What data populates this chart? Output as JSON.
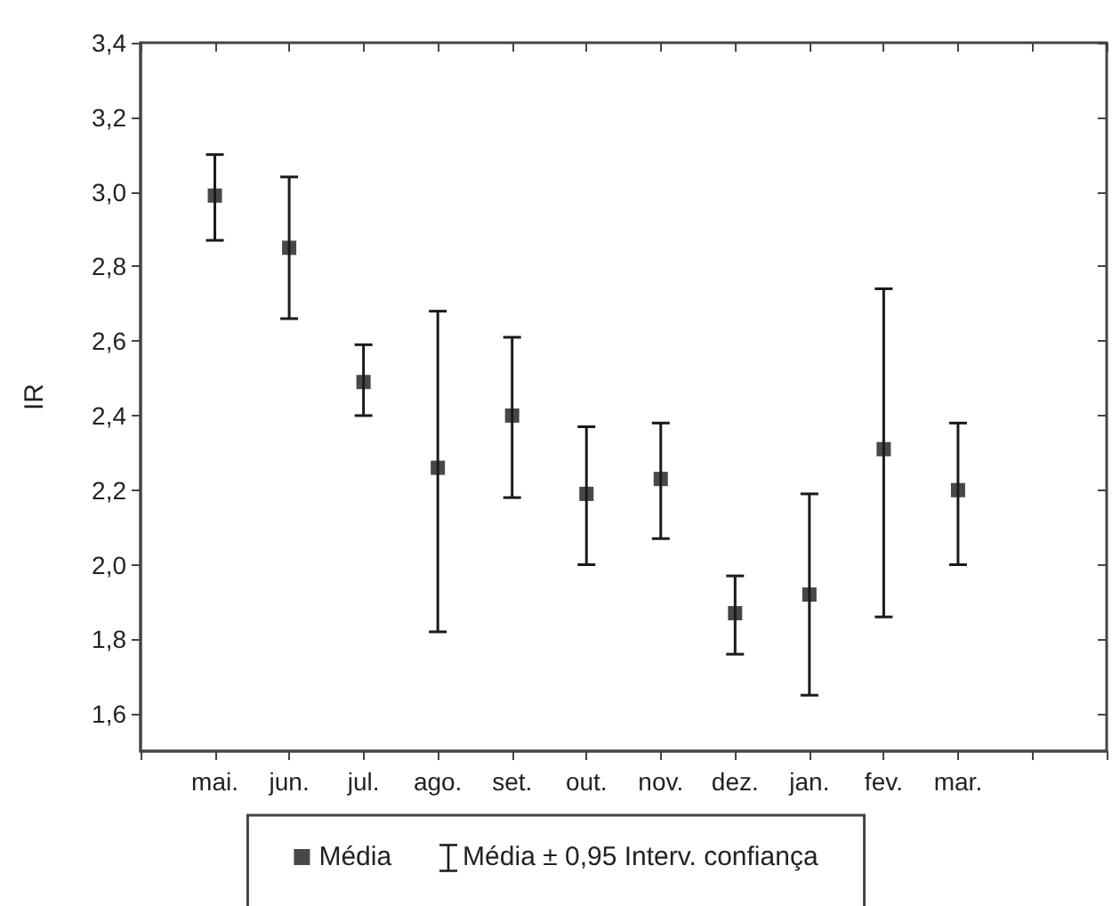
{
  "chart_data": {
    "type": "scatter",
    "ylabel": "IR",
    "categories": [
      null,
      "mai.",
      "jun.",
      "jul.",
      "ago.",
      "set.",
      "out.",
      "nov.",
      "dez.",
      "jan.",
      "fev.",
      "mar.",
      null
    ],
    "series": [
      {
        "name": "Média",
        "color": "#1a1a1a",
        "values": [
          null,
          2.99,
          2.85,
          2.49,
          2.26,
          2.4,
          2.19,
          2.23,
          1.87,
          1.92,
          2.31,
          2.2,
          null
        ],
        "errors": [
          null,
          [
            2.87,
            3.1
          ],
          [
            2.66,
            3.04
          ],
          [
            2.4,
            2.59
          ],
          [
            1.82,
            2.68
          ],
          [
            2.18,
            2.61
          ],
          [
            2.0,
            2.37
          ],
          [
            2.07,
            2.38
          ],
          [
            1.76,
            1.97
          ],
          [
            1.65,
            2.19
          ],
          [
            1.86,
            2.74
          ],
          [
            2.0,
            2.38
          ],
          null
        ]
      }
    ],
    "annotations": [
      "Média ± 0,95 Interv. confiança"
    ],
    "ylim": [
      1.5,
      3.4
    ],
    "yticks": [
      {
        "value": 1.6,
        "label": "1,6"
      },
      {
        "value": 1.8,
        "label": "1,8"
      },
      {
        "value": 2.0,
        "label": "2,0"
      },
      {
        "value": 2.2,
        "label": "2,2"
      },
      {
        "value": 2.4,
        "label": "2,4"
      },
      {
        "value": 2.6,
        "label": "2,6"
      },
      {
        "value": 2.8,
        "label": "2,8"
      },
      {
        "value": 3.0,
        "label": "3,0"
      },
      {
        "value": 3.2,
        "label": "3,2"
      },
      {
        "value": 3.4,
        "label": "3,4"
      }
    ],
    "marker": "square",
    "grid": false,
    "legend": "bottom"
  }
}
